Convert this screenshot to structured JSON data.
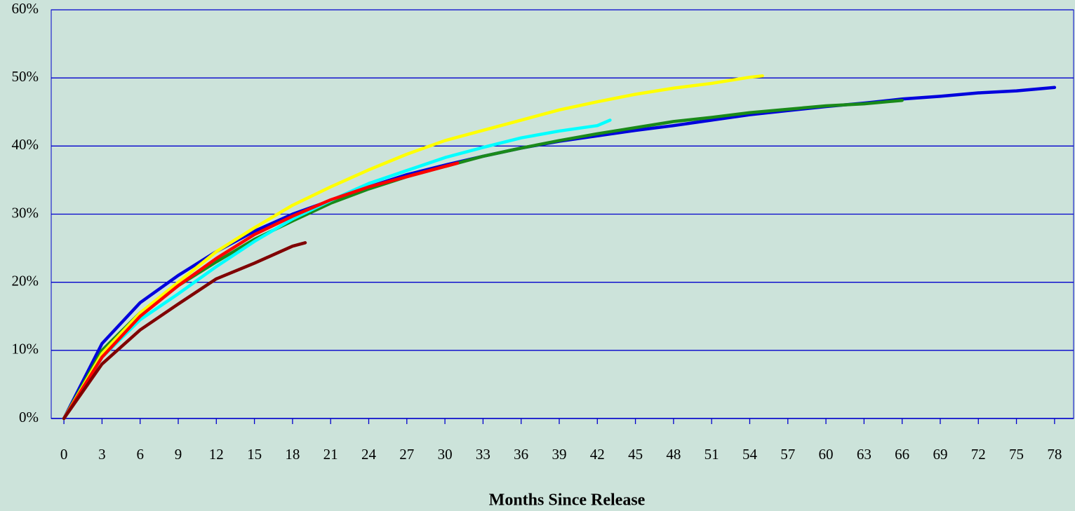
{
  "chart_data": {
    "type": "line",
    "x_label": "Months Since Release",
    "xlim": [
      -1,
      79.5
    ],
    "xticks": [
      0,
      3,
      6,
      9,
      12,
      15,
      18,
      21,
      24,
      27,
      30,
      33,
      36,
      39,
      42,
      45,
      48,
      51,
      54,
      57,
      60,
      63,
      66,
      69,
      72,
      75,
      78
    ],
    "ylim": [
      0,
      60
    ],
    "yticks": [
      {
        "value": 0,
        "label": "0%"
      },
      {
        "value": 10,
        "label": "10%"
      },
      {
        "value": 20,
        "label": "20%"
      },
      {
        "value": 30,
        "label": "30%"
      },
      {
        "value": 40,
        "label": "40%"
      },
      {
        "value": 50,
        "label": "50%"
      },
      {
        "value": 60,
        "label": "60%"
      }
    ],
    "grid": true,
    "series": [
      {
        "color": "#0000dd",
        "x": [
          0,
          3,
          6,
          9,
          12,
          15,
          18,
          21,
          24,
          27,
          30,
          33,
          36,
          39,
          42,
          45,
          48,
          51,
          54,
          57,
          60,
          63,
          66,
          69,
          72,
          75,
          78
        ],
        "values": [
          0,
          11,
          17,
          21,
          24.5,
          27.5,
          30,
          32,
          34,
          35.8,
          37.2,
          38.5,
          39.7,
          40.7,
          41.5,
          42.3,
          43,
          43.8,
          44.6,
          45.2,
          45.8,
          46.3,
          46.9,
          47.3,
          47.8,
          48.1,
          48.6
        ]
      },
      {
        "color": "#1a8a1a",
        "x": [
          0,
          3,
          6,
          9,
          12,
          15,
          18,
          21,
          24,
          27,
          30,
          33,
          36,
          39,
          42,
          45,
          48,
          51,
          54,
          57,
          60,
          63,
          66
        ],
        "values": [
          0,
          10,
          15.5,
          19.5,
          23,
          26.3,
          29,
          31.6,
          33.7,
          35.5,
          37,
          38.5,
          39.7,
          40.8,
          41.8,
          42.7,
          43.6,
          44.2,
          44.9,
          45.4,
          45.9,
          46.2,
          46.7
        ]
      },
      {
        "color": "#ffff00",
        "x": [
          0,
          3,
          6,
          9,
          12,
          15,
          18,
          21,
          24,
          27,
          30,
          33,
          36,
          39,
          42,
          45,
          48,
          51,
          54,
          55
        ],
        "values": [
          0,
          9.5,
          15.5,
          20,
          24.5,
          28,
          31.3,
          34,
          36.5,
          38.8,
          40.8,
          42.3,
          43.8,
          45.3,
          46.5,
          47.6,
          48.5,
          49.2,
          50.1,
          50.3
        ]
      },
      {
        "color": "#00ffff",
        "x": [
          0,
          3,
          6,
          9,
          12,
          15,
          18,
          21,
          24,
          27,
          30,
          33,
          36,
          39,
          42,
          43
        ],
        "values": [
          0,
          9,
          14.5,
          18.3,
          22.3,
          26,
          29.3,
          32,
          34.5,
          36.4,
          38.3,
          39.8,
          41.2,
          42.2,
          43,
          43.8
        ]
      },
      {
        "color": "#ff0000",
        "x": [
          0,
          3,
          6,
          9,
          12,
          15,
          18,
          21,
          24,
          27,
          30,
          31
        ],
        "values": [
          0,
          9,
          15,
          19.5,
          23.5,
          27,
          29.7,
          32.1,
          34,
          35.5,
          37,
          37.5
        ]
      },
      {
        "color": "#800000",
        "x": [
          0,
          3,
          6,
          9,
          12,
          15,
          18,
          19
        ],
        "values": [
          0,
          8,
          13,
          16.8,
          20.5,
          22.8,
          25.3,
          25.8
        ]
      }
    ]
  }
}
